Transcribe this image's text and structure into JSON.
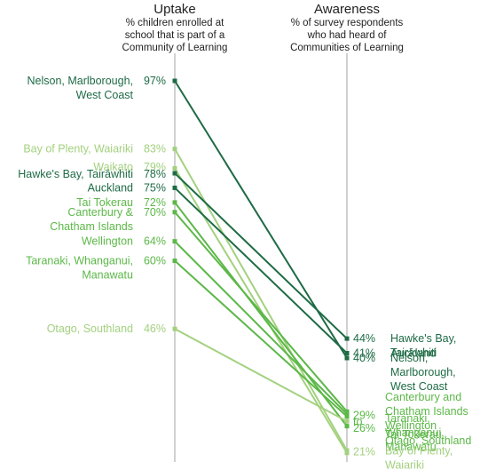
{
  "chart_data": {
    "type": "slope",
    "columns": [
      {
        "title": "Uptake",
        "subtitle": [
          "% children enrolled at",
          "school that is part of a",
          "Community of Learning"
        ]
      },
      {
        "title": "Awareness",
        "subtitle": [
          "% of survey respondents",
          "who had heard of",
          "Communities of Learning"
        ]
      }
    ],
    "ylim": [
      20,
      98
    ],
    "colors": {
      "dark": "#1e6b45",
      "mid": "#5cb848",
      "light": "#a3d17f",
      "axis": "#d0d0d0"
    },
    "series": [
      {
        "name": "Nelson, Marlborough, West Coast",
        "uptake": 97,
        "awareness": 40,
        "tone": "dark"
      },
      {
        "name": "Bay of Plenty, Waiariki",
        "uptake": 83,
        "awareness": 21,
        "tone": "light"
      },
      {
        "name": "Waikato",
        "uptake": 79,
        "awareness": 20.5,
        "tone": "light"
      },
      {
        "name": "Hawke's Bay, Tairāwhiti",
        "uptake": 78,
        "awareness": 44,
        "tone": "dark"
      },
      {
        "name": "Auckland",
        "uptake": 75,
        "awareness": 41,
        "tone": "dark"
      },
      {
        "name": "Tai Tokerau",
        "uptake": 72,
        "awareness": 26,
        "tone": "mid"
      },
      {
        "name": "Canterbury & Chatham Islands",
        "uptake": 70,
        "awareness": 29,
        "tone": "mid"
      },
      {
        "name": "Wellington",
        "uptake": 64,
        "awareness": 28.5,
        "tone": "mid"
      },
      {
        "name": "Taranaki, Whanganui, Manawatu",
        "uptake": 60,
        "awareness": 28,
        "tone": "mid"
      },
      {
        "name": "Otago, Southland",
        "uptake": 46,
        "awareness": 27,
        "tone": "light"
      }
    ],
    "left_labels": [
      {
        "lines": [
          "Nelson, Marlborough,",
          "West Coast"
        ],
        "value": "97%",
        "tone": "dark",
        "anchor": 97
      },
      {
        "lines": [
          "Bay of Plenty, Waiariki"
        ],
        "value": "83%",
        "tone": "light",
        "anchor": 83
      },
      {
        "lines": [
          "Waikato"
        ],
        "value": "79%",
        "tone": "light",
        "anchor": 79.3
      },
      {
        "lines": [
          "Hawke's Bay, Tairāwhiti"
        ],
        "value": "78%",
        "tone": "dark",
        "anchor": 77.8
      },
      {
        "lines": [
          "Auckland"
        ],
        "value": "75%",
        "tone": "dark",
        "anchor": 75
      },
      {
        "lines": [
          "Tai Tokerau"
        ],
        "value": "72%",
        "tone": "mid",
        "anchor": 72
      },
      {
        "lines": [
          "Canterbury &",
          "Chatham Islands"
        ],
        "value": "70%",
        "tone": "mid",
        "anchor": 70
      },
      {
        "lines": [
          "Wellington"
        ],
        "value": "64%",
        "tone": "mid",
        "anchor": 64
      },
      {
        "lines": [
          "Taranaki, Whanganui,",
          "Manawatu"
        ],
        "value": "60%",
        "tone": "mid",
        "anchor": 60
      },
      {
        "lines": [
          "Otago, Southland"
        ],
        "value": "46%",
        "tone": "light",
        "anchor": 46
      }
    ],
    "right_labels": [
      {
        "value": "44%",
        "lines": [
          "Hawke's Bay,",
          "Tairāwhiti"
        ],
        "tone": "dark",
        "anchor": 44
      },
      {
        "value": "41%",
        "lines": [
          "Auckland"
        ],
        "tone": "dark",
        "anchor": 41
      },
      {
        "value": "40%",
        "lines": [
          "Nelson,",
          "Marlborough,",
          "West Coast"
        ],
        "tone": "dark",
        "anchor": 40
      },
      {
        "value": "29%",
        "lines": [],
        "tone": "mid",
        "anchor": 28.2
      },
      {
        "value": "to",
        "lines": [],
        "tone": "mid",
        "anchor": 26.9
      },
      {
        "value": "26%",
        "lines": [],
        "tone": "mid",
        "anchor": 25.6
      },
      {
        "value": "21%",
        "lines": [],
        "tone": "light",
        "anchor": 20.7
      }
    ],
    "right_group_labels": [
      {
        "lines": [
          "Canterbury and",
          "Chatham Islands",
          "Wellington"
        ],
        "tone": "mid",
        "anchor": 32
      },
      {
        "lines": [
          "Taranaki,",
          "Whanganui,",
          "Manawatu"
        ],
        "tone": "mid",
        "anchor": 27.6
      },
      {
        "lines": [
          "Tai Tokerau"
        ],
        "tone": "mid",
        "anchor": 24.3
      },
      {
        "lines": [
          "Otago, Southland"
        ],
        "tone": "mid",
        "anchor": 23.0
      },
      {
        "lines": [
          "Bay of Plenty,",
          "Waiariki",
          "Waikato"
        ],
        "tone": "light",
        "anchor": 20.9
      }
    ]
  }
}
